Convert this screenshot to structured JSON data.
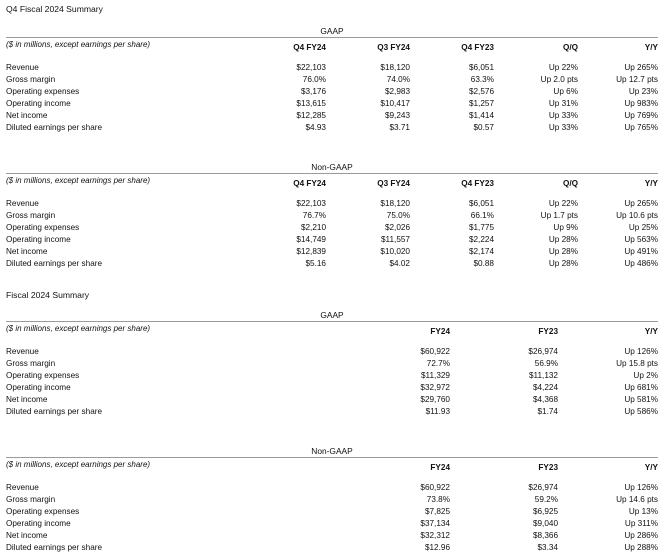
{
  "q4": {
    "title": "Q4 Fiscal 2024 Summary",
    "note": "($ in millions, except earnings per share)",
    "gaap": {
      "label": "GAAP",
      "columns": [
        "Q4 FY24",
        "Q3 FY24",
        "Q4 FY23",
        "Q/Q",
        "Y/Y"
      ],
      "rows": [
        {
          "label": "Revenue",
          "values": [
            "$22,103",
            "$18,120",
            "$6,051",
            "Up 22%",
            "Up 265%"
          ]
        },
        {
          "label": "Gross margin",
          "values": [
            "76.0%",
            "74.0%",
            "63.3%",
            "Up 2.0 pts",
            "Up 12.7 pts"
          ]
        },
        {
          "label": "Operating expenses",
          "values": [
            "$3,176",
            "$2,983",
            "$2,576",
            "Up 6%",
            "Up 23%"
          ]
        },
        {
          "label": "Operating income",
          "values": [
            "$13,615",
            "$10,417",
            "$1,257",
            "Up 31%",
            "Up 983%"
          ]
        },
        {
          "label": "Net income",
          "values": [
            "$12,285",
            "$9,243",
            "$1,414",
            "Up 33%",
            "Up 769%"
          ]
        },
        {
          "label": "Diluted earnings per share",
          "values": [
            "$4.93",
            "$3.71",
            "$0.57",
            "Up 33%",
            "Up 765%"
          ]
        }
      ]
    },
    "nongaap": {
      "label": "Non-GAAP",
      "columns": [
        "Q4 FY24",
        "Q3 FY24",
        "Q4 FY23",
        "Q/Q",
        "Y/Y"
      ],
      "rows": [
        {
          "label": "Revenue",
          "values": [
            "$22,103",
            "$18,120",
            "$6,051",
            "Up 22%",
            "Up 265%"
          ]
        },
        {
          "label": "Gross margin",
          "values": [
            "76.7%",
            "75.0%",
            "66.1%",
            "Up 1.7 pts",
            "Up 10.6 pts"
          ]
        },
        {
          "label": "Operating expenses",
          "values": [
            "$2,210",
            "$2,026",
            "$1,775",
            "Up 9%",
            "Up 25%"
          ]
        },
        {
          "label": "Operating income",
          "values": [
            "$14,749",
            "$11,557",
            "$2,224",
            "Up 28%",
            "Up 563%"
          ]
        },
        {
          "label": "Net income",
          "values": [
            "$12,839",
            "$10,020",
            "$2,174",
            "Up 28%",
            "Up 491%"
          ]
        },
        {
          "label": "Diluted earnings per share",
          "values": [
            "$5.16",
            "$4.02",
            "$0.88",
            "Up 28%",
            "Up 486%"
          ]
        }
      ]
    }
  },
  "fy": {
    "title": "Fiscal 2024 Summary",
    "note": "($ in millions, except earnings per share)",
    "gaap": {
      "label": "GAAP",
      "columns": [
        "FY24",
        "FY23",
        "Y/Y"
      ],
      "rows": [
        {
          "label": "Revenue",
          "values": [
            "$60,922",
            "$26,974",
            "Up 126%"
          ]
        },
        {
          "label": "Gross margin",
          "values": [
            "72.7%",
            "56.9%",
            "Up 15.8 pts"
          ]
        },
        {
          "label": "Operating expenses",
          "values": [
            "$11,329",
            "$11,132",
            "Up 2%"
          ]
        },
        {
          "label": "Operating income",
          "values": [
            "$32,972",
            "$4,224",
            "Up 681%"
          ]
        },
        {
          "label": "Net income",
          "values": [
            "$29,760",
            "$4,368",
            "Up 581%"
          ]
        },
        {
          "label": "Diluted earnings per share",
          "values": [
            "$11.93",
            "$1.74",
            "Up 586%"
          ]
        }
      ]
    },
    "nongaap": {
      "label": "Non-GAAP",
      "columns": [
        "FY24",
        "FY23",
        "Y/Y"
      ],
      "rows": [
        {
          "label": "Revenue",
          "values": [
            "$60,922",
            "$26,974",
            "Up 126%"
          ]
        },
        {
          "label": "Gross margin",
          "values": [
            "73.8%",
            "59.2%",
            "Up 14.6 pts"
          ]
        },
        {
          "label": "Operating expenses",
          "values": [
            "$7,825",
            "$6,925",
            "Up 13%"
          ]
        },
        {
          "label": "Operating income",
          "values": [
            "$37,134",
            "$9,040",
            "Up 311%"
          ]
        },
        {
          "label": "Net income",
          "values": [
            "$32,312",
            "$8,366",
            "Up 286%"
          ]
        },
        {
          "label": "Diluted earnings per share",
          "values": [
            "$12.96",
            "$3.34",
            "Up 288%"
          ]
        }
      ]
    }
  }
}
